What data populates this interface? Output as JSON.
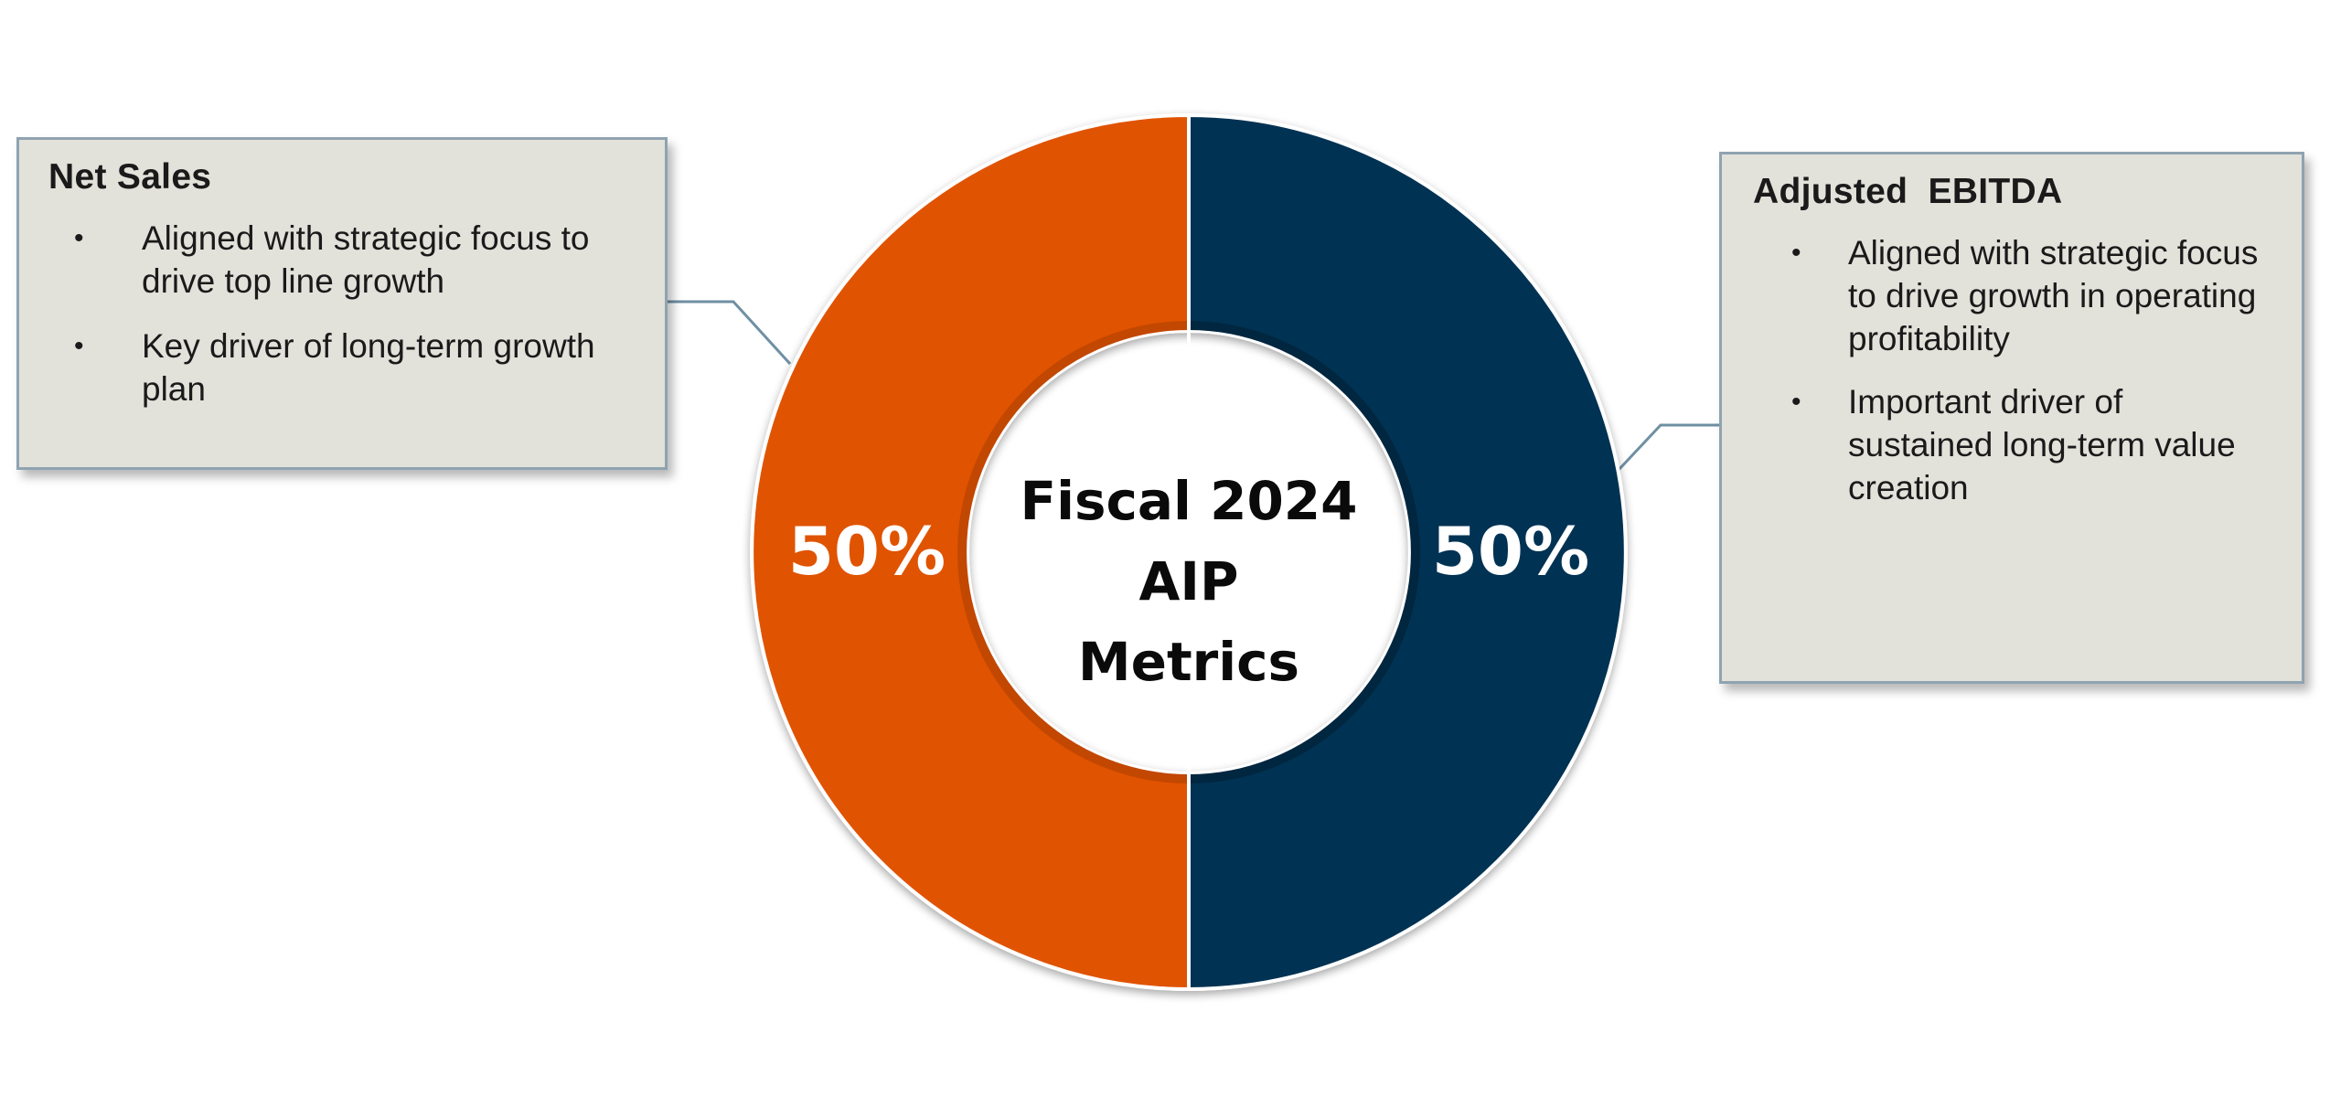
{
  "chart_data": {
    "type": "pie",
    "style": "donut",
    "center_label": [
      "Fiscal 2024",
      "AIP",
      "Metrics"
    ],
    "slices": [
      {
        "name": "Net Sales",
        "value": 50,
        "label": "50%",
        "color": "#e05206",
        "edge_color": "#c24605"
      },
      {
        "name": "Adjusted EBITDA",
        "value": 50,
        "label": "50%",
        "color": "#003352",
        "edge_color": "#002640"
      }
    ]
  },
  "callouts": {
    "left": {
      "title": "Net Sales",
      "bullets": [
        "Aligned with strategic focus to drive top line growth",
        "Key driver of long-term growth plan"
      ]
    },
    "right": {
      "title": "Adjusted  EBITDA",
      "bullets": [
        "Aligned with strategic focus to drive growth in operating profitability",
        "Important driver of sustained long-term value creation"
      ]
    }
  },
  "colors": {
    "callout_bg": "#e2e1da",
    "callout_border": "#8fa3b0",
    "connector": "#6f8fa3"
  }
}
